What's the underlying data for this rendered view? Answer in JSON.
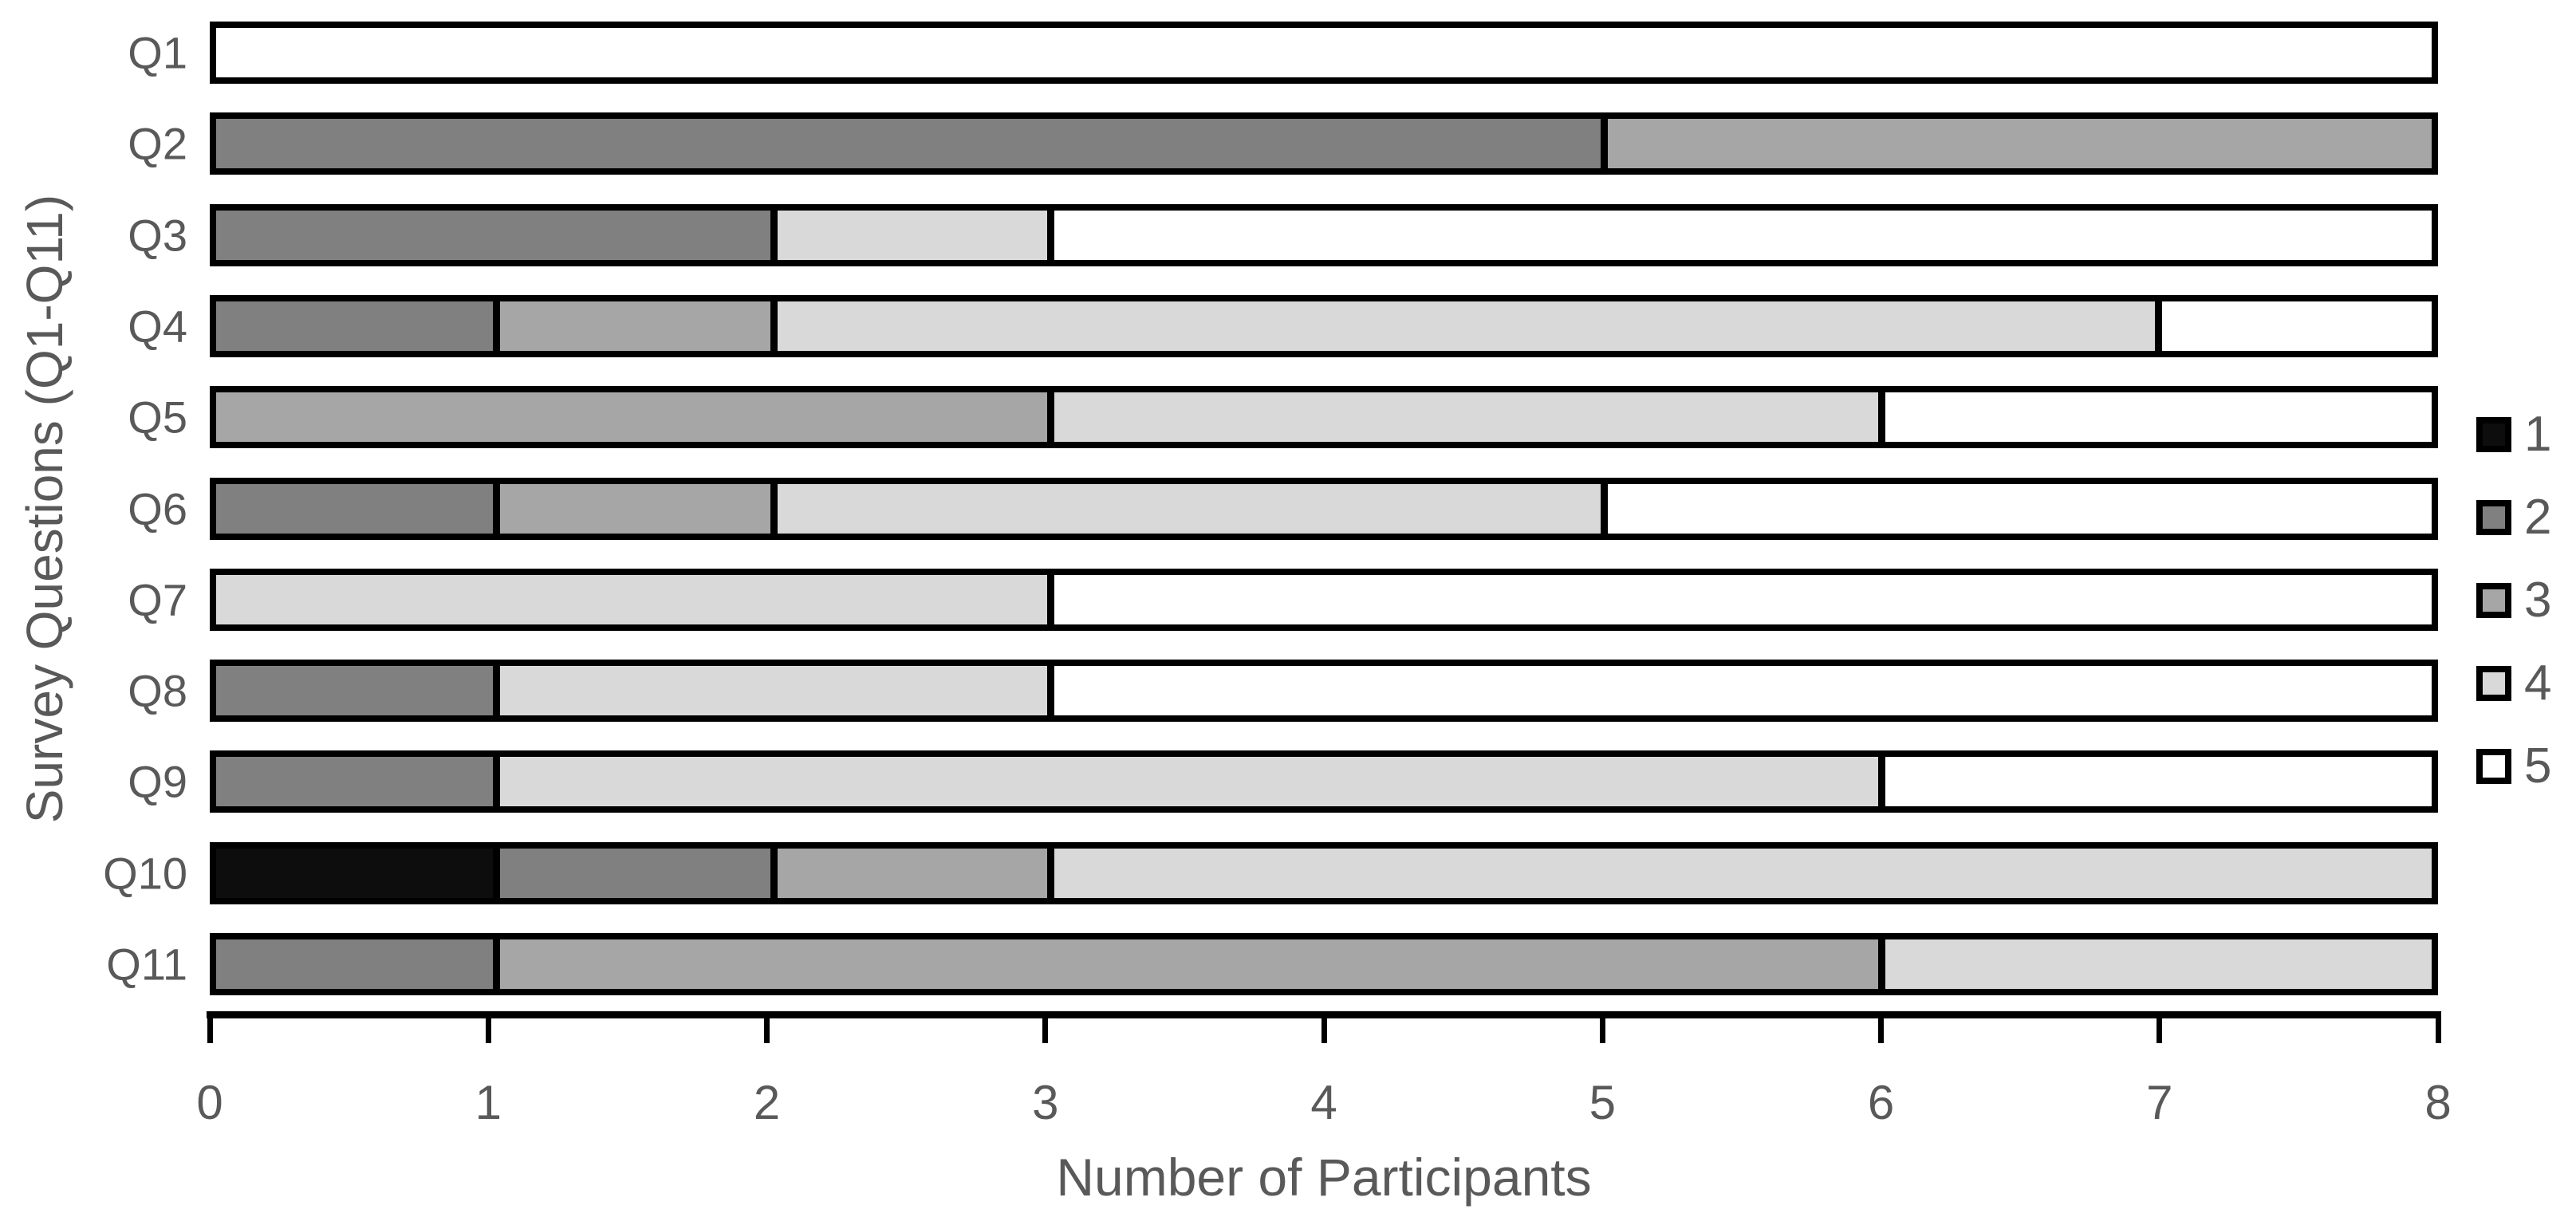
{
  "chart_data": {
    "type": "bar",
    "orientation": "horizontal",
    "stacked": true,
    "title": "",
    "xlabel": "Number of Participants",
    "ylabel": "Survey Questions (Q1-Q11)",
    "xlim": [
      0,
      8
    ],
    "x_ticks": [
      0,
      1,
      2,
      3,
      4,
      5,
      6,
      7,
      8
    ],
    "x_tick_labels": [
      "0",
      "1",
      "2",
      "3",
      "4",
      "5",
      "6",
      "7",
      "8"
    ],
    "categories": [
      "Q1",
      "Q2",
      "Q3",
      "Q4",
      "Q5",
      "Q6",
      "Q7",
      "Q8",
      "Q9",
      "Q10",
      "Q11"
    ],
    "series": [
      {
        "name": "1",
        "color": "#0d0d0d",
        "values": [
          0,
          0,
          0,
          0,
          0,
          0,
          0,
          0,
          0,
          1,
          0
        ]
      },
      {
        "name": "2",
        "color": "#808080",
        "values": [
          0,
          5,
          2,
          1,
          0,
          1,
          0,
          1,
          1,
          1,
          1
        ]
      },
      {
        "name": "3",
        "color": "#a6a6a6",
        "values": [
          0,
          3,
          0,
          1,
          3,
          1,
          0,
          0,
          0,
          1,
          5
        ]
      },
      {
        "name": "4",
        "color": "#d9d9d9",
        "values": [
          0,
          0,
          1,
          5,
          3,
          3,
          3,
          2,
          5,
          5,
          2
        ]
      },
      {
        "name": "5",
        "color": "#ffffff",
        "values": [
          8,
          0,
          5,
          1,
          2,
          3,
          5,
          5,
          2,
          0,
          0
        ]
      }
    ],
    "legend": {
      "position": "right",
      "entries": [
        "1",
        "2",
        "3",
        "4",
        "5"
      ]
    },
    "grid": false
  },
  "styles": {
    "background": "#ffffff",
    "text_color": "#595959",
    "bar_border_color": "#000000",
    "axis_color": "#000000"
  }
}
